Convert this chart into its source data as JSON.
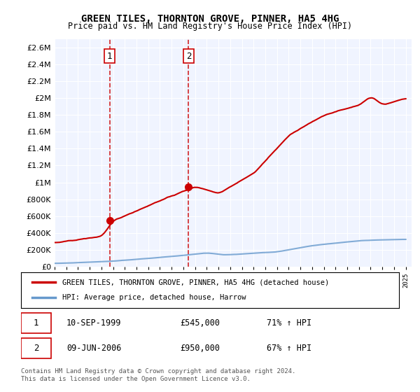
{
  "title": "GREEN TILES, THORNTON GROVE, PINNER, HA5 4HG",
  "subtitle": "Price paid vs. HM Land Registry's House Price Index (HPI)",
  "ylabel": "",
  "ylim": [
    0,
    2700000
  ],
  "yticks": [
    0,
    200000,
    400000,
    600000,
    800000,
    1000000,
    1200000,
    1400000,
    1600000,
    1800000,
    2000000,
    2200000,
    2400000,
    2600000
  ],
  "ytick_labels": [
    "£0",
    "£200K",
    "£400K",
    "£600K",
    "£800K",
    "£1M",
    "£1.2M",
    "£1.4M",
    "£1.6M",
    "£1.8M",
    "£2M",
    "£2.2M",
    "£2.4M",
    "£2.6M"
  ],
  "background_color": "#ffffff",
  "plot_bg_color": "#f0f4ff",
  "grid_color": "#ffffff",
  "transaction1": {
    "label": "1",
    "year": 1999.7,
    "price": 545000,
    "date": "10-SEP-1999",
    "hpi_change": "71% ↑ HPI"
  },
  "transaction2": {
    "label": "2",
    "year": 2006.45,
    "price": 950000,
    "date": "09-JUN-2006",
    "hpi_change": "67% ↑ HPI"
  },
  "legend_line1": "GREEN TILES, THORNTON GROVE, PINNER, HA5 4HG (detached house)",
  "legend_line2": "HPI: Average price, detached house, Harrow",
  "footer": "Contains HM Land Registry data © Crown copyright and database right 2024.\nThis data is licensed under the Open Government Licence v3.0.",
  "line_color_red": "#cc0000",
  "line_color_blue": "#6699cc",
  "vline_color": "#cc0000"
}
